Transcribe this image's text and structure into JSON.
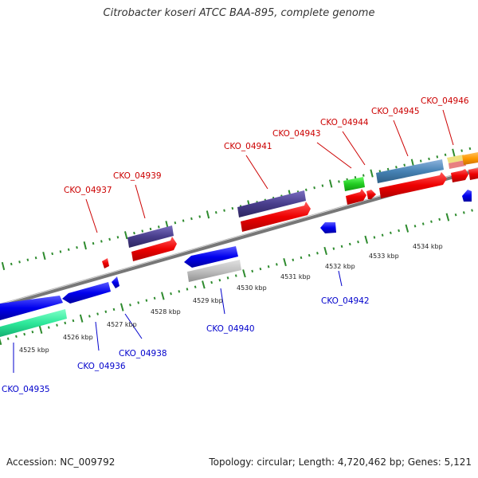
{
  "title": "Citrobacter koseri ATCC BAA-895, complete genome",
  "footer": {
    "accession": "Accession: NC_009792",
    "topology": "Topology: circular; Length: 4,720,462 bp; Genes: 5,121"
  },
  "colors": {
    "backbone": "#888888",
    "tick": "#2e8b2e",
    "label_top": "#cc0000",
    "label_bottom": "#0000cc",
    "scale_text": "#222222"
  },
  "scale_labels": [
    "4525 kbp",
    "4526 kbp",
    "4527 kbp",
    "4528 kbp",
    "4529 kbp",
    "4530 kbp",
    "4531 kbp",
    "4532 kbp",
    "4533 kbp",
    "4534 kbp"
  ],
  "features": [
    {
      "label": "CKO_04935",
      "strand": "minus"
    },
    {
      "label": "CKO_04936",
      "strand": "minus"
    },
    {
      "label": "CKO_04937",
      "strand": "plus"
    },
    {
      "label": "CKO_04938",
      "strand": "minus"
    },
    {
      "label": "CKO_04939",
      "strand": "plus"
    },
    {
      "label": "CKO_04940",
      "strand": "minus"
    },
    {
      "label": "CKO_04941",
      "strand": "plus"
    },
    {
      "label": "CKO_04942",
      "strand": "minus"
    },
    {
      "label": "CKO_04943",
      "strand": "plus"
    },
    {
      "label": "CKO_04944",
      "strand": "plus"
    },
    {
      "label": "CKO_04945",
      "strand": "plus"
    },
    {
      "label": "CKO_04946",
      "strand": "plus"
    }
  ]
}
